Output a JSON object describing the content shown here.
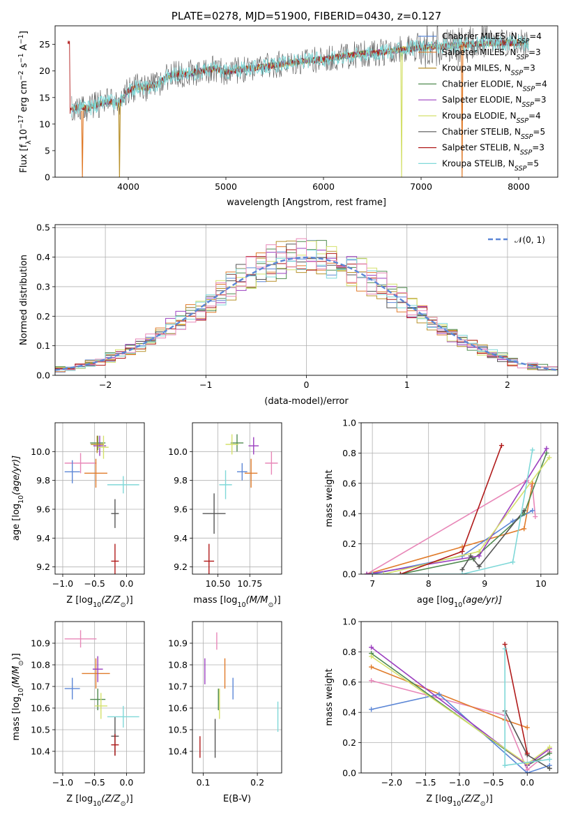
{
  "chart_data": [
    {
      "type": "line",
      "title": "PLATE=0278, MJD=51900, FIBERID=0430, z=0.127",
      "xlabel": "wavelength [Angstrom, rest frame]",
      "ylabel_main": "Flux [f",
      "ylabel_sub": "λ",
      "ylabel_rest": "10",
      "ylabel_sup": "−17",
      "ylabel_units": " erg cm",
      "ylabel_sup2": "−2",
      "ylabel_s": " s",
      "ylabel_sup3": "−1",
      "ylabel_A": " A",
      "ylabel_sup4": "−1",
      "ylabel_end": "]",
      "xlim": [
        3250,
        8400
      ],
      "ylim": [
        0,
        28.5
      ],
      "xticks": [
        "4000",
        "5000",
        "6000",
        "7000",
        "8000"
      ],
      "xtick_values": [
        4000,
        5000,
        6000,
        7000,
        8000
      ],
      "yticks": [
        "0",
        "5",
        "10",
        "15",
        "20",
        "25"
      ],
      "ytick_values": [
        0,
        5,
        10,
        15,
        20,
        25
      ],
      "grid": false,
      "legend_position": "right",
      "spectrum_shape": {
        "x": [
          3400,
          3500,
          3600,
          3700,
          3800,
          3900,
          4000,
          4100,
          4200,
          4300,
          4400,
          4500,
          4600,
          4700,
          4800,
          4900,
          5000,
          5200,
          5400,
          5600,
          5800,
          6000,
          6200,
          6400,
          6600,
          6800,
          7000,
          7200,
          7400,
          7600,
          7800,
          8000,
          8100
        ],
        "y": [
          12.5,
          13.3,
          13.0,
          13.8,
          14.3,
          13.8,
          16.3,
          17.0,
          16.8,
          17.5,
          19.0,
          19.5,
          19.4,
          19.8,
          20.2,
          20.5,
          19.8,
          20.4,
          20.8,
          21.4,
          21.9,
          22.2,
          22.8,
          23.2,
          23.5,
          24.0,
          24.4,
          24.6,
          24.9,
          25.1,
          25.3,
          25.3,
          25.1
        ]
      },
      "series": [
        {
          "name_pre": "Chabrier MILES, N",
          "name_sub": "SSP",
          "name_post": "=4",
          "color": "#5b86d6"
        },
        {
          "name_pre": "Salpeter MILES, N",
          "name_sub": "SSP",
          "name_post": "=3",
          "color": "#e07b2a"
        },
        {
          "name_pre": "Kroupa MILES, N",
          "name_sub": "SSP",
          "name_post": "=3",
          "color": "#b8902a"
        },
        {
          "name_pre": "Chabrier ELODIE, N",
          "name_sub": "SSP",
          "name_post": "=4",
          "color": "#4f8a4f"
        },
        {
          "name_pre": "Salpeter ELODIE, N",
          "name_sub": "SSP",
          "name_post": "=3",
          "color": "#9b3fbf"
        },
        {
          "name_pre": "Kroupa ELODIE, N",
          "name_sub": "SSP",
          "name_post": "=4",
          "color": "#d4e06a"
        },
        {
          "name_pre": "Chabrier STELIB, N",
          "name_sub": "SSP",
          "name_post": "=5",
          "color": "#555555"
        },
        {
          "name_pre": "Salpeter STELIB, N",
          "name_sub": "SSP",
          "name_post": "=3",
          "color": "#b01a1a"
        },
        {
          "name_pre": "Kroupa STELIB, N",
          "name_sub": "SSP",
          "name_post": "=5",
          "color": "#7fd8d8"
        }
      ]
    },
    {
      "type": "line",
      "xlabel": "(data-model)/error",
      "ylabel": "Normed distribution",
      "xlim": [
        -2.5,
        2.5
      ],
      "ylim": [
        0,
        0.51
      ],
      "xticks": [
        "−2",
        "−1",
        "0",
        "1",
        "2"
      ],
      "xtick_values": [
        -2,
        -1,
        0,
        1,
        2
      ],
      "yticks": [
        "0.0",
        "0.1",
        "0.2",
        "0.3",
        "0.4",
        "0.5"
      ],
      "ytick_values": [
        0,
        0.1,
        0.2,
        0.3,
        0.4,
        0.5
      ],
      "grid": true,
      "legend_position": "top-right",
      "reference_label": "𝒩(0, 1)",
      "reference_color": "#5b86d6",
      "bin_width": 0.1
    },
    {
      "type": "scatter",
      "xlabel_pre": "Z [log",
      "xlabel_sub": "10",
      "xlabel_post": "(Z/Z",
      "xlabel_sun": "⊙",
      "xlabel_end": ")]",
      "ylabel_pre": "age  [log",
      "ylabel_sub": "10",
      "ylabel_post": "(age/yr)]",
      "xlim": [
        -1.12,
        0.28
      ],
      "ylim": [
        9.15,
        10.2
      ],
      "xticks": [
        "−1.0",
        "−0.5",
        "0.0"
      ],
      "xtick_values": [
        -1.0,
        -0.5,
        0.0
      ],
      "yticks": [
        "9.2",
        "9.4",
        "9.6",
        "9.8",
        "10.0"
      ],
      "ytick_values": [
        9.2,
        9.4,
        9.6,
        9.8,
        10.0
      ],
      "grid": true,
      "points": [
        {
          "x": -0.72,
          "y": 9.92,
          "xerr": 0.25,
          "yerr": 0.07,
          "c": "#e887b8"
        },
        {
          "x": -0.48,
          "y": 9.85,
          "xerr": 0.18,
          "yerr": 0.1,
          "c": "#e07b2a"
        },
        {
          "x": -0.85,
          "y": 9.86,
          "xerr": 0.12,
          "yerr": 0.08,
          "c": "#5b86d6"
        },
        {
          "x": -0.45,
          "y": 10.06,
          "xerr": 0.12,
          "yerr": 0.05,
          "c": "#4f8a4f"
        },
        {
          "x": -0.42,
          "y": 10.04,
          "xerr": 0.1,
          "yerr": 0.07,
          "c": "#9b3fbf"
        },
        {
          "x": -0.36,
          "y": 10.03,
          "xerr": 0.08,
          "yerr": 0.08,
          "c": "#d4e06a"
        },
        {
          "x": -0.18,
          "y": 9.57,
          "xerr": 0.06,
          "yerr": 0.1,
          "c": "#555555"
        },
        {
          "x": -0.18,
          "y": 9.24,
          "xerr": 0.06,
          "yerr": 0.12,
          "c": "#b01a1a"
        },
        {
          "x": -0.05,
          "y": 9.77,
          "xerr": 0.25,
          "yerr": 0.06,
          "c": "#7fd8d8"
        },
        {
          "x": -0.46,
          "y": 10.05,
          "xerr": 0.1,
          "yerr": 0.06,
          "c": "#b8902a"
        }
      ]
    },
    {
      "type": "scatter",
      "xlabel_pre": "mass [log",
      "xlabel_sub": "10",
      "xlabel_post": "(M/M",
      "xlabel_sun": "⊙",
      "xlabel_end": ")]",
      "xlim": [
        10.3,
        11.0
      ],
      "ylim": [
        9.15,
        10.2
      ],
      "xticks": [
        "10.50",
        "10.75"
      ],
      "xtick_values": [
        10.5,
        10.75
      ],
      "yticks": [
        "9.2",
        "9.4",
        "9.6",
        "9.8",
        "10.0"
      ],
      "ytick_values": [
        9.2,
        9.4,
        9.6,
        9.8,
        10.0
      ],
      "grid": true,
      "points": [
        {
          "x": 10.92,
          "y": 9.92,
          "xerr": 0.05,
          "yerr": 0.08,
          "c": "#e887b8"
        },
        {
          "x": 10.76,
          "y": 9.85,
          "xerr": 0.05,
          "yerr": 0.1,
          "c": "#e07b2a"
        },
        {
          "x": 10.69,
          "y": 9.86,
          "xerr": 0.04,
          "yerr": 0.06,
          "c": "#5b86d6"
        },
        {
          "x": 10.65,
          "y": 10.06,
          "xerr": 0.05,
          "yerr": 0.06,
          "c": "#4f8a4f"
        },
        {
          "x": 10.78,
          "y": 10.04,
          "xerr": 0.04,
          "yerr": 0.06,
          "c": "#9b3fbf"
        },
        {
          "x": 10.61,
          "y": 10.05,
          "xerr": 0.05,
          "yerr": 0.07,
          "c": "#d4e06a"
        },
        {
          "x": 10.47,
          "y": 9.57,
          "xerr": 0.09,
          "yerr": 0.14,
          "c": "#555555"
        },
        {
          "x": 10.43,
          "y": 9.24,
          "xerr": 0.04,
          "yerr": 0.12,
          "c": "#b01a1a"
        },
        {
          "x": 10.56,
          "y": 9.77,
          "xerr": 0.05,
          "yerr": 0.1,
          "c": "#7fd8d8"
        }
      ]
    },
    {
      "type": "line",
      "xlabel_pre": "age  [log",
      "xlabel_sub": "10",
      "xlabel_post": "(age/yr)]",
      "ylabel": "mass weight",
      "xlim": [
        6.8,
        10.3
      ],
      "ylim": [
        0,
        1.0
      ],
      "xticks": [
        "7",
        "8",
        "9",
        "10"
      ],
      "xtick_values": [
        7,
        8,
        9,
        10
      ],
      "yticks": [
        "0.0",
        "0.2",
        "0.4",
        "0.6",
        "0.8",
        "1.0"
      ],
      "ytick_values": [
        0,
        0.2,
        0.4,
        0.6,
        0.8,
        1.0
      ],
      "grid": true,
      "series": [
        {
          "c": "#e887b8",
          "points": [
            [
              6.9,
              0.0
            ],
            [
              9.75,
              0.62
            ],
            [
              9.85,
              0.58
            ],
            [
              9.9,
              0.38
            ]
          ]
        },
        {
          "c": "#e07b2a",
          "points": [
            [
              6.9,
              0.0
            ],
            [
              8.6,
              0.18
            ],
            [
              9.7,
              0.3
            ],
            [
              9.85,
              0.6
            ]
          ]
        },
        {
          "c": "#5b86d6",
          "points": [
            [
              7.0,
              0.0
            ],
            [
              8.6,
              0.12
            ],
            [
              9.5,
              0.35
            ],
            [
              9.85,
              0.42
            ]
          ]
        },
        {
          "c": "#4f8a4f",
          "points": [
            [
              7.5,
              0.0
            ],
            [
              8.8,
              0.1
            ],
            [
              9.7,
              0.4
            ],
            [
              10.1,
              0.8
            ]
          ]
        },
        {
          "c": "#9b3fbf",
          "points": [
            [
              6.9,
              0.0
            ],
            [
              8.9,
              0.12
            ],
            [
              10.1,
              0.83
            ]
          ]
        },
        {
          "c": "#d4e06a",
          "points": [
            [
              7.2,
              0.0
            ],
            [
              8.9,
              0.15
            ],
            [
              10.15,
              0.77
            ]
          ]
        },
        {
          "c": "#555555",
          "points": [
            [
              8.6,
              0.03
            ],
            [
              8.75,
              0.12
            ],
            [
              8.9,
              0.05
            ],
            [
              9.7,
              0.42
            ]
          ]
        },
        {
          "c": "#b01a1a",
          "points": [
            [
              7.5,
              0.0
            ],
            [
              8.6,
              0.15
            ],
            [
              9.3,
              0.85
            ]
          ]
        },
        {
          "c": "#7fd8d8",
          "points": [
            [
              7.0,
              0.0
            ],
            [
              8.6,
              0.0
            ],
            [
              9.5,
              0.08
            ],
            [
              9.85,
              0.82
            ]
          ]
        }
      ]
    },
    {
      "type": "scatter",
      "xlabel_pre": "Z [log",
      "xlabel_sub": "10",
      "xlabel_post": "(Z/Z",
      "xlabel_sun": "⊙",
      "xlabel_end": ")]",
      "ylabel_pre": "mass [log",
      "ylabel_sub": "10",
      "ylabel_post": "(M/M",
      "ylabel_sun": "⊙",
      "ylabel_end": ")]",
      "xlim": [
        -1.12,
        0.28
      ],
      "ylim": [
        10.3,
        11.0
      ],
      "xticks": [
        "−1.0",
        "−0.5",
        "0.0"
      ],
      "xtick_values": [
        -1.0,
        -0.5,
        0.0
      ],
      "yticks": [
        "10.4",
        "10.5",
        "10.6",
        "10.7",
        "10.8",
        "10.9"
      ],
      "ytick_values": [
        10.4,
        10.5,
        10.6,
        10.7,
        10.8,
        10.9
      ],
      "grid": true,
      "points": [
        {
          "x": -0.72,
          "y": 10.92,
          "xerr": 0.25,
          "yerr": 0.04,
          "c": "#e887b8"
        },
        {
          "x": -0.48,
          "y": 10.76,
          "xerr": 0.22,
          "yerr": 0.07,
          "c": "#e07b2a"
        },
        {
          "x": -0.85,
          "y": 10.69,
          "xerr": 0.12,
          "yerr": 0.05,
          "c": "#5b86d6"
        },
        {
          "x": -0.45,
          "y": 10.64,
          "xerr": 0.12,
          "yerr": 0.05,
          "c": "#4f8a4f"
        },
        {
          "x": -0.45,
          "y": 10.78,
          "xerr": 0.08,
          "yerr": 0.06,
          "c": "#9b3fbf"
        },
        {
          "x": -0.4,
          "y": 10.61,
          "xerr": 0.1,
          "yerr": 0.06,
          "c": "#d4e06a"
        },
        {
          "x": -0.18,
          "y": 10.47,
          "xerr": 0.06,
          "yerr": 0.09,
          "c": "#555555"
        },
        {
          "x": -0.18,
          "y": 10.43,
          "xerr": 0.06,
          "yerr": 0.05,
          "c": "#b01a1a"
        },
        {
          "x": -0.05,
          "y": 10.56,
          "xerr": 0.25,
          "yerr": 0.05,
          "c": "#7fd8d8"
        }
      ]
    },
    {
      "type": "scatter",
      "xlabel": "E(B-V)",
      "xlim": [
        0.08,
        0.245
      ],
      "ylim": [
        10.3,
        11.0
      ],
      "xticks": [
        "0.1",
        "0.2"
      ],
      "xtick_values": [
        0.1,
        0.2
      ],
      "yticks": [
        "10.4",
        "10.5",
        "10.6",
        "10.7",
        "10.8",
        "10.9"
      ],
      "ytick_values": [
        10.4,
        10.5,
        10.6,
        10.7,
        10.8,
        10.9
      ],
      "grid": true,
      "points": [
        {
          "x": 0.125,
          "y": 10.91,
          "xerr": 0,
          "yerr": 0.04,
          "c": "#e887b8"
        },
        {
          "x": 0.14,
          "y": 10.76,
          "xerr": 0,
          "yerr": 0.07,
          "c": "#e07b2a"
        },
        {
          "x": 0.155,
          "y": 10.69,
          "xerr": 0,
          "yerr": 0.05,
          "c": "#5b86d6"
        },
        {
          "x": 0.128,
          "y": 10.64,
          "xerr": 0,
          "yerr": 0.05,
          "c": "#4f8a4f"
        },
        {
          "x": 0.103,
          "y": 10.77,
          "xerr": 0,
          "yerr": 0.06,
          "c": "#9b3fbf"
        },
        {
          "x": 0.13,
          "y": 10.62,
          "xerr": 0,
          "yerr": 0.07,
          "c": "#d4e06a"
        },
        {
          "x": 0.122,
          "y": 10.46,
          "xerr": 0,
          "yerr": 0.09,
          "c": "#555555"
        },
        {
          "x": 0.094,
          "y": 10.42,
          "xerr": 0,
          "yerr": 0.05,
          "c": "#b01a1a"
        },
        {
          "x": 0.238,
          "y": 10.56,
          "xerr": 0,
          "yerr": 0.07,
          "c": "#7fd8d8"
        }
      ]
    },
    {
      "type": "line",
      "xlabel_pre": "Z [log",
      "xlabel_sub": "10",
      "xlabel_post": "(Z/Z",
      "xlabel_sun": "⊙",
      "xlabel_end": ")]",
      "ylabel": "mass weight",
      "xlim": [
        -2.45,
        0.45
      ],
      "ylim": [
        0,
        1.0
      ],
      "xticks": [
        "−2.0",
        "−1.5",
        "−1.0",
        "−0.5",
        "0.0"
      ],
      "xtick_values": [
        -2.0,
        -1.5,
        -1.0,
        -0.5,
        0.0
      ],
      "yticks": [
        "0.0",
        "0.2",
        "0.4",
        "0.6",
        "0.8",
        "1.0"
      ],
      "ytick_values": [
        0,
        0.2,
        0.4,
        0.6,
        0.8,
        1.0
      ],
      "grid": true,
      "series": [
        {
          "c": "#e887b8",
          "points": [
            [
              -2.3,
              0.61
            ],
            [
              -0.33,
              0.38
            ],
            [
              0.0,
              0.02
            ],
            [
              0.33,
              0.14
            ]
          ]
        },
        {
          "c": "#e07b2a",
          "points": [
            [
              -2.3,
              0.7
            ],
            [
              -0.33,
              0.35
            ],
            [
              0.0,
              0.3
            ]
          ]
        },
        {
          "c": "#5b86d6",
          "points": [
            [
              -2.3,
              0.42
            ],
            [
              -1.3,
              0.52
            ],
            [
              0.0,
              0.0
            ],
            [
              0.33,
              0.05
            ]
          ]
        },
        {
          "c": "#4f8a4f",
          "points": [
            [
              -2.3,
              0.79
            ],
            [
              0.0,
              0.05
            ],
            [
              0.33,
              0.13
            ]
          ]
        },
        {
          "c": "#9b3fbf",
          "points": [
            [
              -2.3,
              0.83
            ],
            [
              0.0,
              0.05
            ],
            [
              0.33,
              0.16
            ]
          ]
        },
        {
          "c": "#d4e06a",
          "points": [
            [
              -2.3,
              0.77
            ],
            [
              0.0,
              0.06
            ],
            [
              0.33,
              0.17
            ]
          ]
        },
        {
          "c": "#555555",
          "points": [
            [
              -0.33,
              0.41
            ],
            [
              0.0,
              0.12
            ],
            [
              0.33,
              0.03
            ]
          ]
        },
        {
          "c": "#b01a1a",
          "points": [
            [
              -0.33,
              0.85
            ],
            [
              0.0,
              0.13
            ]
          ]
        },
        {
          "c": "#7fd8d8",
          "points": [
            [
              -0.33,
              0.82
            ],
            [
              -0.33,
              0.05
            ],
            [
              0.33,
              0.09
            ]
          ]
        }
      ]
    }
  ]
}
